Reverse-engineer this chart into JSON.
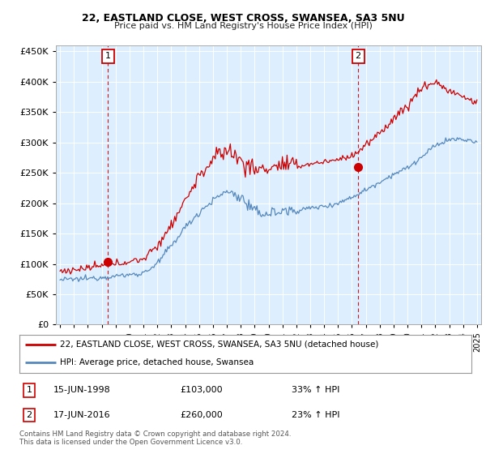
{
  "title": "22, EASTLAND CLOSE, WEST CROSS, SWANSEA, SA3 5NU",
  "subtitle": "Price paid vs. HM Land Registry's House Price Index (HPI)",
  "ylim": [
    0,
    460000
  ],
  "yticks": [
    0,
    50000,
    100000,
    150000,
    200000,
    250000,
    300000,
    350000,
    400000,
    450000
  ],
  "xlim_start": 1994.7,
  "xlim_end": 2025.3,
  "legend_line1": "22, EASTLAND CLOSE, WEST CROSS, SWANSEA, SA3 5NU (detached house)",
  "legend_line2": "HPI: Average price, detached house, Swansea",
  "marker1_date": "15-JUN-1998",
  "marker1_price": "£103,000",
  "marker1_hpi": "33% ↑ HPI",
  "marker1_x": 1998.45,
  "marker1_y": 103000,
  "marker2_date": "17-JUN-2016",
  "marker2_price": "£260,000",
  "marker2_hpi": "23% ↑ HPI",
  "marker2_x": 2016.45,
  "marker2_y": 260000,
  "sold_color": "#cc0000",
  "hpi_color": "#5588bb",
  "plot_bg_color": "#ddeeff",
  "background_color": "#ffffff",
  "grid_color": "#ffffff",
  "footer": "Contains HM Land Registry data © Crown copyright and database right 2024.\nThis data is licensed under the Open Government Licence v3.0."
}
